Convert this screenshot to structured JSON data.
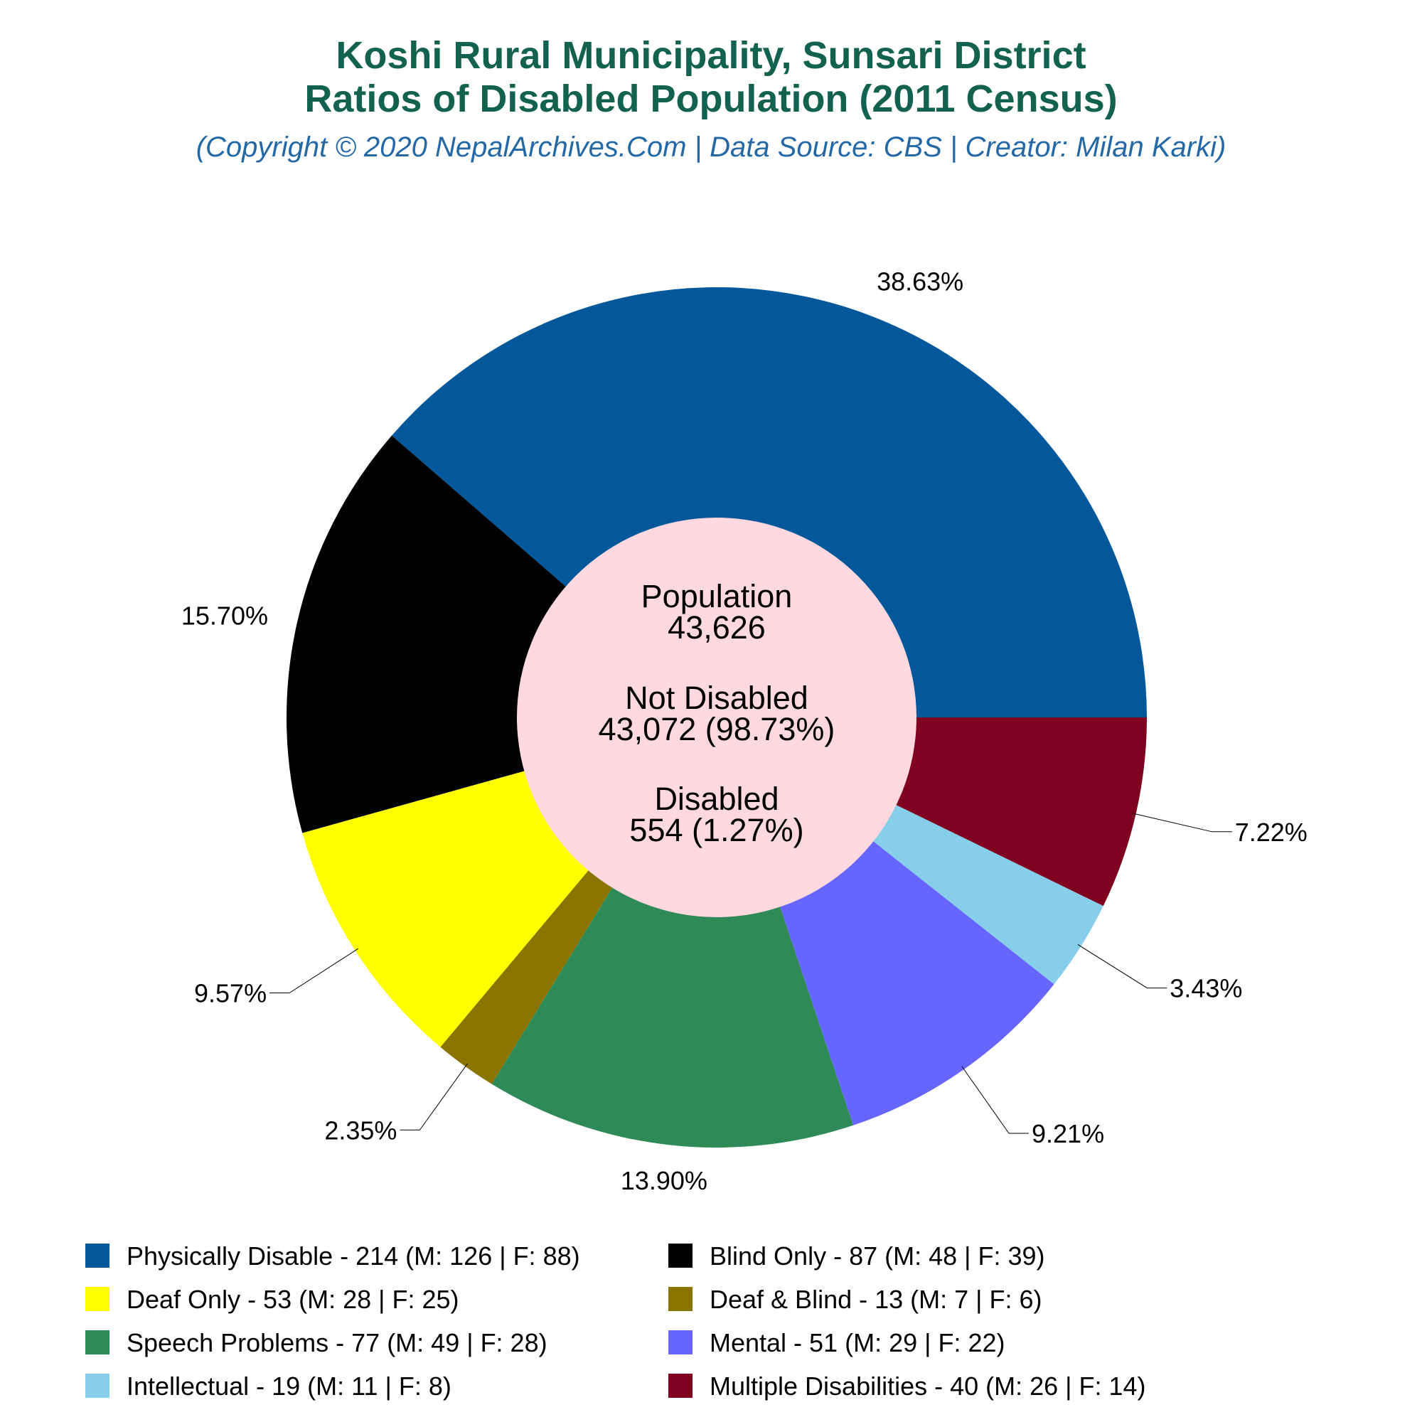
{
  "title_line1": "Koshi Rural Municipality, Sunsari District",
  "title_line2": "Ratios of Disabled Population (2011 Census)",
  "subtitle": "(Copyright © 2020 NepalArchives.Com | Data Source: CBS | Creator: Milan Karki)",
  "center": {
    "population_label": "Population",
    "population_value": "43,626",
    "not_disabled_label": "Not Disabled",
    "not_disabled_value": "43,072 (98.73%)",
    "disabled_label": "Disabled",
    "disabled_value": "554 (1.27%)"
  },
  "chart_data": {
    "type": "pie",
    "donut": true,
    "slices": [
      {
        "name": "Physically Disable",
        "value": 214,
        "male": 126,
        "female": 88,
        "percent": "38.63%",
        "color": "#02589A",
        "legend": "Physically Disable - 214 (M: 126 | F: 88)"
      },
      {
        "name": "Blind Only",
        "value": 87,
        "male": 48,
        "female": 39,
        "percent": "15.70%",
        "color": "#000000",
        "legend": "Blind Only - 87 (M: 48 | F: 39)"
      },
      {
        "name": "Deaf Only",
        "value": 53,
        "male": 28,
        "female": 25,
        "percent": "9.57%",
        "color": "#FFFF00",
        "legend": "Deaf Only - 53 (M: 28 | F: 25)"
      },
      {
        "name": "Deaf & Blind",
        "value": 13,
        "male": 7,
        "female": 6,
        "percent": "2.35%",
        "color": "#8B7500",
        "legend": "Deaf & Blind - 13 (M: 7 | F: 6)"
      },
      {
        "name": "Speech Problems",
        "value": 77,
        "male": 49,
        "female": 28,
        "percent": "13.90%",
        "color": "#2E8B57",
        "legend": "Speech Problems - 77 (M: 49 | F: 28)"
      },
      {
        "name": "Mental",
        "value": 51,
        "male": 29,
        "female": 22,
        "percent": "9.21%",
        "color": "#6666FF",
        "legend": "Mental - 51 (M: 29 | F: 22)"
      },
      {
        "name": "Intellectual",
        "value": 19,
        "male": 11,
        "female": 8,
        "percent": "3.43%",
        "color": "#87CEEB",
        "legend": "Intellectual - 19 (M: 11 | F: 8)"
      },
      {
        "name": "Multiple Disabilities",
        "value": 40,
        "male": 26,
        "female": 14,
        "percent": "7.22%",
        "color": "#800020",
        "legend": "Multiple Disabilities - 40 (M: 26 | F: 14)"
      }
    ],
    "center_color": "#FFD9DF",
    "legend_position": "bottom"
  }
}
